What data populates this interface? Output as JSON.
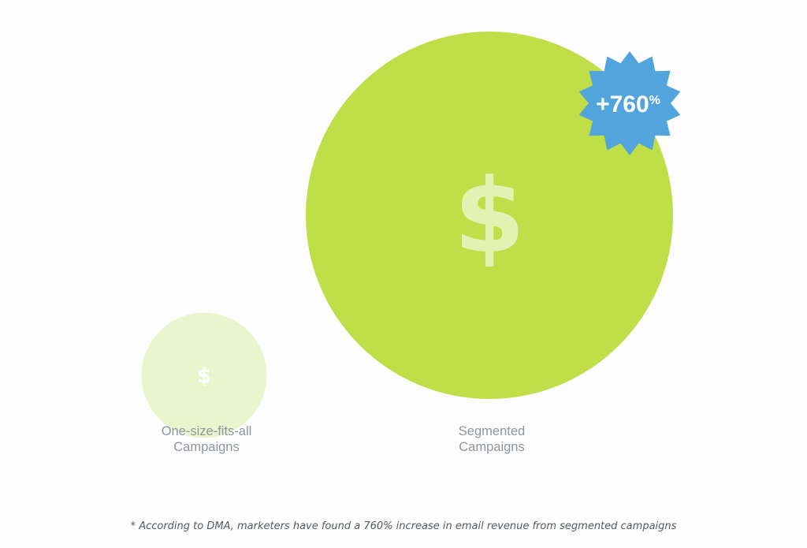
{
  "chart_data": {
    "type": "bubble",
    "categories": [
      "One-size-fits-all Campaigns",
      "Segmented Campaigns"
    ],
    "category_lines": [
      [
        "One-size-fits-all",
        "Campaigns"
      ],
      [
        "Segmented",
        "Campaigns"
      ]
    ],
    "values": [
      1,
      8.6
    ],
    "symbol": "$",
    "badge": {
      "value": "+760",
      "unit": "%"
    },
    "footnote": "* According to DMA, marketers have found a 760% increase in email revenue from segmented campaigns",
    "colors": {
      "small_bubble": "#ebf5cd",
      "small_symbol": "#ffffff",
      "big_bubble": "#c0de47",
      "big_symbol": "#e3f2b3",
      "badge": "#52a5dc",
      "badge_text": "#ffffff",
      "label_text": "#8f959c",
      "footnote_text": "#555b61"
    }
  }
}
